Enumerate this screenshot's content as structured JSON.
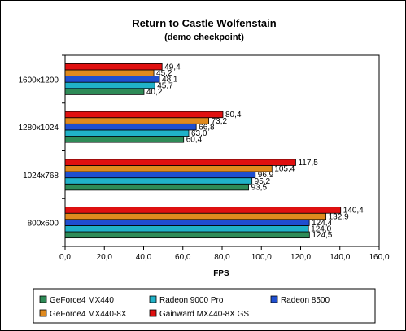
{
  "chart_data": {
    "type": "bar",
    "orientation": "horizontal",
    "title": "Return to Castle Wolfenstain",
    "subtitle": "(demo checkpoint)",
    "xlabel": "FPS",
    "ylabel": "",
    "xlim": [
      0,
      160
    ],
    "x_ticks": [
      "0,0",
      "20,0",
      "40,0",
      "60,0",
      "80,0",
      "100,0",
      "120,0",
      "140,0",
      "160,0"
    ],
    "x_tick_values": [
      0,
      20,
      40,
      60,
      80,
      100,
      120,
      140,
      160
    ],
    "grid": false,
    "legend_position": "bottom",
    "categories": [
      "1600x1200",
      "1280x1024",
      "1024x768",
      "800x600"
    ],
    "series": [
      {
        "name": "GeForce4 MX440",
        "color": "#2e8b57",
        "values": [
          40.2,
          60.4,
          93.5,
          124.5
        ],
        "labels": [
          "40,2",
          "60,4",
          "93,5",
          "124,5"
        ]
      },
      {
        "name": "Radeon 9000 Pro",
        "color": "#20b2c8",
        "values": [
          45.7,
          63.0,
          95.2,
          124.0
        ],
        "labels": [
          "45,7",
          "63,0",
          "95,2",
          "124,0"
        ]
      },
      {
        "name": "Radeon 8500",
        "color": "#1f4fd0",
        "values": [
          48.1,
          66.8,
          96.9,
          124.4
        ],
        "labels": [
          "48,1",
          "66,8",
          "96,9",
          "124,4"
        ]
      },
      {
        "name": "GeForce4 MX440-8X",
        "color": "#e08a1e",
        "values": [
          45.2,
          73.2,
          105.4,
          132.9
        ],
        "labels": [
          "45,2",
          "73,2",
          "105,4",
          "132,9"
        ]
      },
      {
        "name": "Gainward MX440-8X GS",
        "color": "#e01010",
        "values": [
          49.4,
          80.4,
          117.5,
          140.4
        ],
        "labels": [
          "49,4",
          "80,4",
          "117,5",
          "140,4"
        ]
      }
    ]
  }
}
